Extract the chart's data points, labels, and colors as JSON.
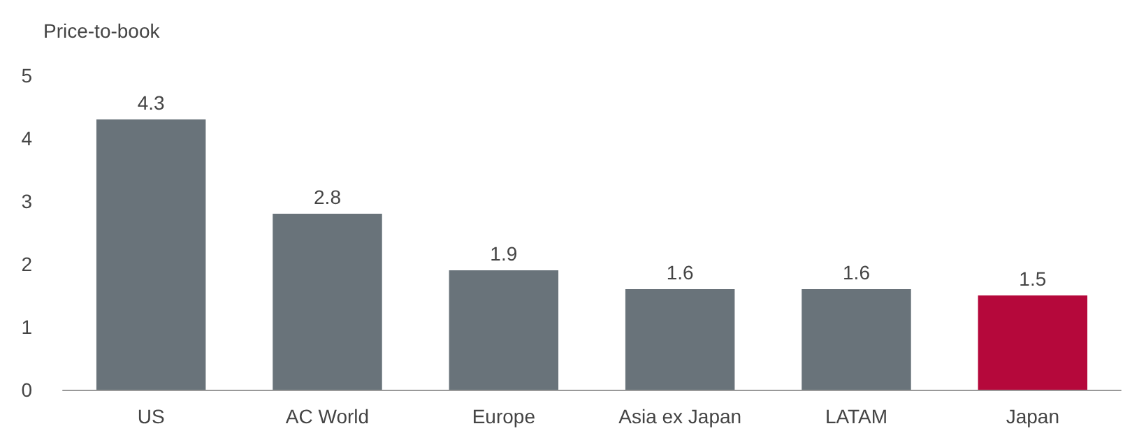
{
  "chart_data": {
    "type": "bar",
    "ylabel": "Price-to-book",
    "categories": [
      "US",
      "AC World",
      "Europe",
      "Asia ex Japan",
      "LATAM",
      "Japan"
    ],
    "values": [
      4.3,
      2.8,
      1.9,
      1.6,
      1.6,
      1.5
    ],
    "colors": [
      "#69737a",
      "#69737a",
      "#69737a",
      "#69737a",
      "#69737a",
      "#b5083b"
    ],
    "ylim": [
      0,
      5
    ],
    "yticks": [
      0,
      1,
      2,
      3,
      4,
      5
    ],
    "grid": false,
    "data_labels": true
  }
}
